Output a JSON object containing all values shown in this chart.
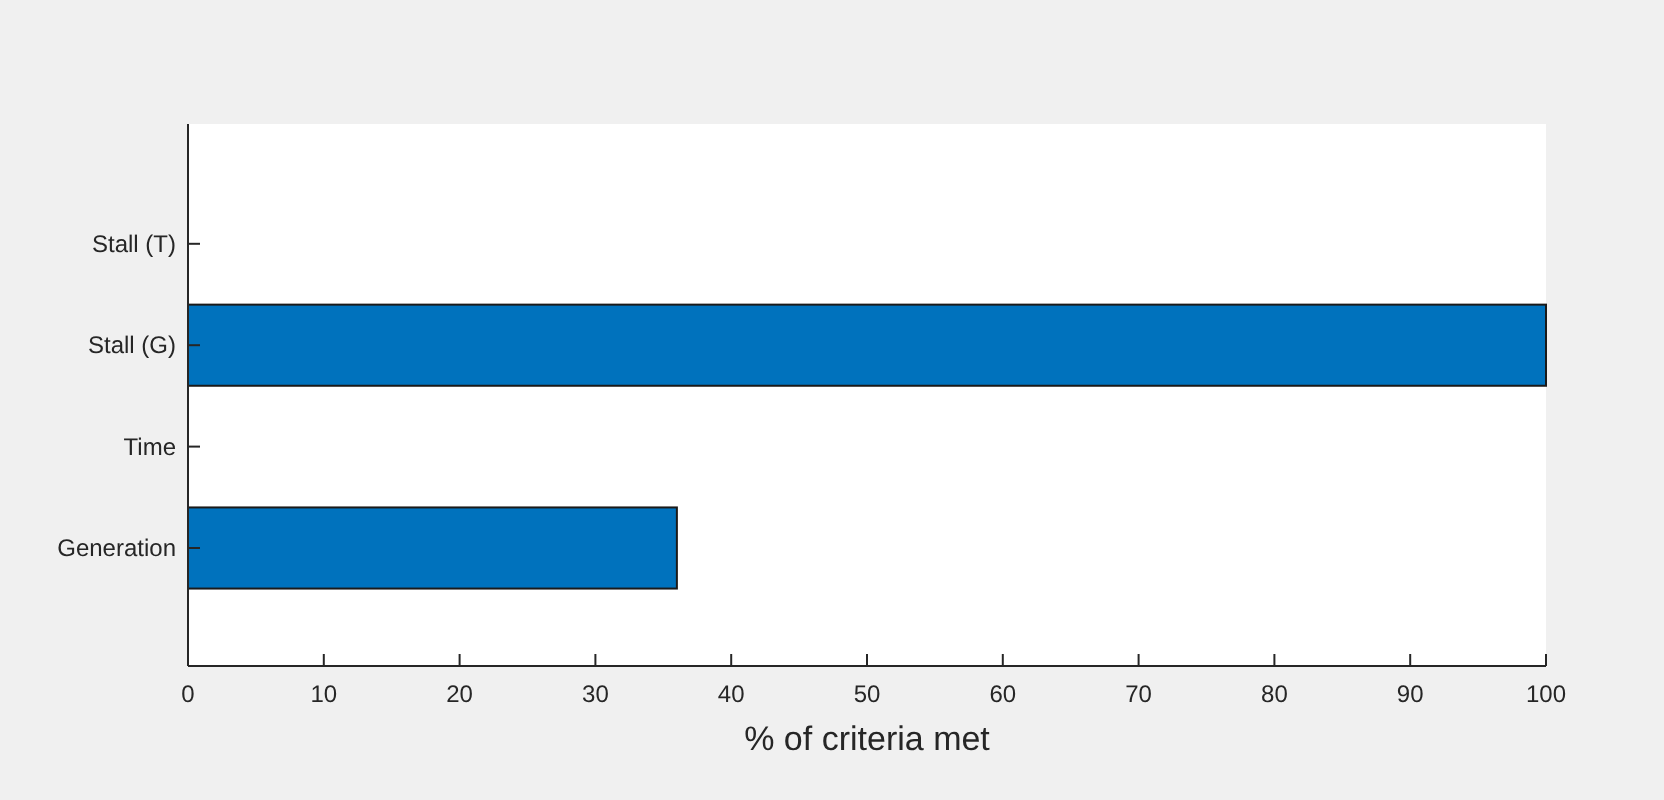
{
  "chart_data": {
    "type": "bar",
    "orientation": "horizontal",
    "xlabel": "% of criteria met",
    "categories": [
      "Stall (T)",
      "Stall (G)",
      "Time",
      "Generation"
    ],
    "values": [
      0,
      100,
      0,
      36
    ],
    "color": "#0072bd",
    "xlim": [
      0,
      100
    ],
    "xticks": [
      0,
      10,
      20,
      30,
      40,
      50,
      60,
      70,
      80,
      90,
      100
    ]
  }
}
